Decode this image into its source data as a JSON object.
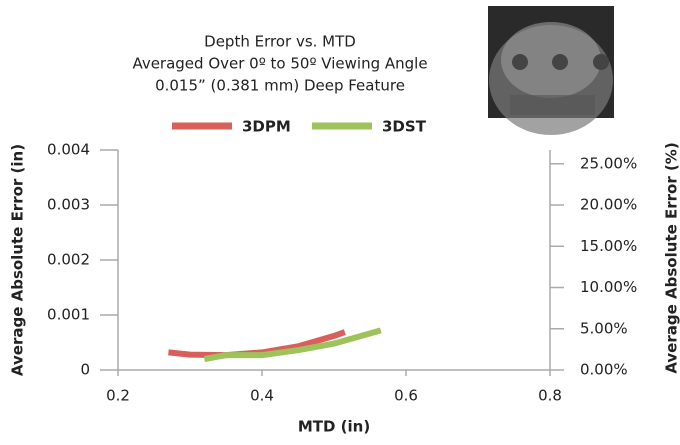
{
  "chart_data": {
    "type": "line",
    "title": [
      "Depth Error vs. MTD",
      "Averaged Over 0º to 50º Viewing Angle",
      "0.015” (0.381 mm) Deep Feature"
    ],
    "x_label": "MTD (in)",
    "y_label": "Average Absolute Error (in)",
    "y2_label": "Average Absolute Error (%)",
    "xlim": [
      0.2,
      0.8
    ],
    "xticks": [
      0.2,
      0.4,
      0.6,
      0.8
    ],
    "ylim": [
      0,
      0.004
    ],
    "yticks": [
      0,
      0.001,
      0.002,
      0.003,
      0.004
    ],
    "y2lim": [
      0,
      26.67
    ],
    "y2ticks": [
      {
        "value": 0,
        "label": "0.00%"
      },
      {
        "value": 5,
        "label": "5.00%"
      },
      {
        "value": 10,
        "label": "10.00%"
      },
      {
        "value": 15,
        "label": "15.00%"
      },
      {
        "value": 20,
        "label": "20.00%"
      },
      {
        "value": 25,
        "label": "25.00%"
      }
    ],
    "legend": "top",
    "series": [
      {
        "name": "3DPM",
        "color": "#d9605a",
        "x": [
          0.27,
          0.3,
          0.35,
          0.4,
          0.45,
          0.5,
          0.515
        ],
        "values": [
          0.00032,
          0.00028,
          0.00027,
          0.00032,
          0.00043,
          0.00062,
          0.00069
        ]
      },
      {
        "name": "3DST",
        "color": "#9dc35a",
        "x": [
          0.32,
          0.35,
          0.4,
          0.45,
          0.5,
          0.565
        ],
        "values": [
          0.0002,
          0.00027,
          0.00027,
          0.00036,
          0.00048,
          0.00072
        ]
      }
    ]
  }
}
